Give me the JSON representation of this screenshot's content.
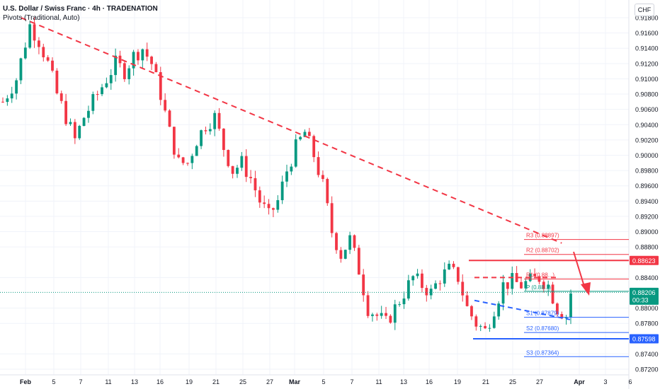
{
  "header": {
    "title": "U.S. Dollar / Swiss Franc · 4h · TRADENATION",
    "indicator": "Pivots (Traditional, Auto)",
    "currency": "CHF"
  },
  "price_axis": {
    "ticks": [
      "0.91800",
      "0.91600",
      "0.91400",
      "0.91200",
      "0.91000",
      "0.90800",
      "0.90600",
      "0.90400",
      "0.90200",
      "0.90000",
      "0.89800",
      "0.89600",
      "0.89400",
      "0.89200",
      "0.89000",
      "0.88800",
      "0.88400",
      "0.88000",
      "0.87800",
      "0.87400",
      "0.87200"
    ],
    "tick_values": [
      0.918,
      0.916,
      0.914,
      0.912,
      0.91,
      0.908,
      0.906,
      0.904,
      0.902,
      0.9,
      0.898,
      0.896,
      0.894,
      0.892,
      0.89,
      0.888,
      0.884,
      0.88,
      0.878,
      0.874,
      0.872
    ],
    "badges": [
      {
        "name": "resistance-badge",
        "label": "0.88623",
        "value": 0.88623,
        "color": "#f23645"
      },
      {
        "name": "last-price-badge",
        "label": "0.88206",
        "sub": "00:33",
        "value": 0.88206,
        "color": "#089981"
      },
      {
        "name": "support-badge",
        "label": "0.87598",
        "value": 0.87598,
        "color": "#2962ff"
      }
    ]
  },
  "time_axis": {
    "labels": [
      "Feb",
      "5",
      "7",
      "11",
      "13",
      "16",
      "19",
      "21",
      "25",
      "27",
      "Mar",
      "5",
      "7",
      "11",
      "13",
      "16",
      "19",
      "21",
      "25",
      "27",
      "Apr",
      "3",
      "6"
    ],
    "bold": [
      "Feb",
      "Mar",
      "Apr"
    ]
  },
  "pivots": [
    {
      "label": "R3 (0.88897)",
      "value": 0.88897,
      "color": "#f23645"
    },
    {
      "label": "R2 (0.88702)",
      "value": 0.88702,
      "color": "#f23645"
    },
    {
      "label": "R1 (0.88...)",
      "value": 0.8838,
      "color": "#f23645"
    },
    {
      "label": "P (0.88...)",
      "value": 0.8822,
      "color": "#089981"
    },
    {
      "label": "S1 (0.87879)",
      "value": 0.87879,
      "color": "#2962ff"
    },
    {
      "label": "S2 (0.87680)",
      "value": 0.8768,
      "color": "#2962ff"
    },
    {
      "label": "S3 (0.87364)",
      "value": 0.87364,
      "color": "#2962ff"
    }
  ],
  "colors": {
    "up": "#089981",
    "down": "#f23645",
    "resistance": "#f23645",
    "support": "#2962ff",
    "grid": "#f0f3fa"
  },
  "chart_data": {
    "type": "candlestick",
    "instrument": "USDCHF",
    "timeframe": "4h",
    "ylim": [
      0.871,
      0.919
    ],
    "close_path": [
      [
        0,
        0.907
      ],
      [
        3,
        0.91
      ],
      [
        6,
        0.917
      ],
      [
        8,
        0.915
      ],
      [
        10,
        0.912
      ],
      [
        12,
        0.908
      ],
      [
        14,
        0.905
      ],
      [
        16,
        0.902
      ],
      [
        18,
        0.905
      ],
      [
        20,
        0.907
      ],
      [
        23,
        0.91
      ],
      [
        25,
        0.912
      ],
      [
        27,
        0.911
      ],
      [
        29,
        0.913
      ],
      [
        31,
        0.914
      ],
      [
        33,
        0.912
      ],
      [
        35,
        0.908
      ],
      [
        37,
        0.903
      ],
      [
        39,
        0.899
      ],
      [
        41,
        0.899
      ],
      [
        43,
        0.902
      ],
      [
        45,
        0.904
      ],
      [
        47,
        0.905
      ],
      [
        49,
        0.901
      ],
      [
        51,
        0.898
      ],
      [
        53,
        0.899
      ],
      [
        55,
        0.897
      ],
      [
        57,
        0.894
      ],
      [
        59,
        0.892
      ],
      [
        61,
        0.894
      ],
      [
        63,
        0.898
      ],
      [
        65,
        0.901
      ],
      [
        67,
        0.903
      ],
      [
        69,
        0.9
      ],
      [
        71,
        0.896
      ],
      [
        73,
        0.89
      ],
      [
        75,
        0.887
      ],
      [
        77,
        0.889
      ],
      [
        79,
        0.885
      ],
      [
        81,
        0.88
      ],
      [
        83,
        0.879
      ],
      [
        85,
        0.878
      ],
      [
        87,
        0.88
      ],
      [
        89,
        0.882
      ],
      [
        91,
        0.884
      ],
      [
        93,
        0.883
      ],
      [
        95,
        0.882
      ],
      [
        97,
        0.884
      ],
      [
        99,
        0.885
      ],
      [
        101,
        0.884
      ],
      [
        103,
        0.88
      ],
      [
        105,
        0.878
      ],
      [
        107,
        0.877
      ],
      [
        109,
        0.88
      ],
      [
        111,
        0.883
      ],
      [
        113,
        0.8835
      ],
      [
        115,
        0.883
      ],
      [
        117,
        0.8835
      ],
      [
        119,
        0.884
      ],
      [
        121,
        0.883
      ],
      [
        123,
        0.88
      ],
      [
        125,
        0.879
      ],
      [
        126,
        0.882
      ]
    ],
    "trendline": {
      "from": [
        4,
        0.918
      ],
      "to": [
        124,
        0.8885
      ]
    },
    "resistance_level": 0.88623,
    "support_level": 0.87598,
    "last_price": 0.88206
  }
}
